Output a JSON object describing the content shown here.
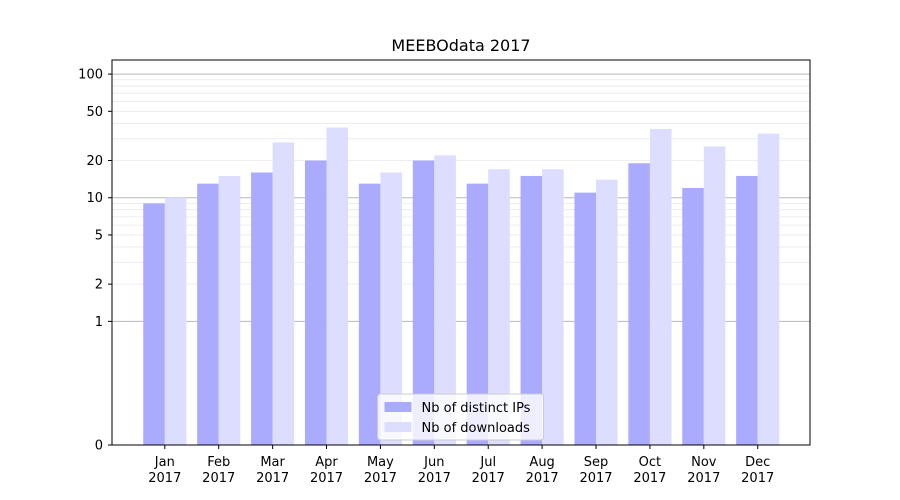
{
  "chart_data": {
    "type": "bar",
    "title": "MEEBOdata 2017",
    "categories": [
      [
        "Jan",
        "2017"
      ],
      [
        "Feb",
        "2017"
      ],
      [
        "Mar",
        "2017"
      ],
      [
        "Apr",
        "2017"
      ],
      [
        "May",
        "2017"
      ],
      [
        "Jun",
        "2017"
      ],
      [
        "Jul",
        "2017"
      ],
      [
        "Aug",
        "2017"
      ],
      [
        "Sep",
        "2017"
      ],
      [
        "Oct",
        "2017"
      ],
      [
        "Nov",
        "2017"
      ],
      [
        "Dec",
        "2017"
      ]
    ],
    "series": [
      {
        "name": "Nb of distinct IPs",
        "color": "#aaaaff",
        "values": [
          9,
          13,
          16,
          20,
          13,
          20,
          13,
          15,
          11,
          19,
          12,
          15
        ]
      },
      {
        "name": "Nb of downloads",
        "color": "#ddddff",
        "values": [
          10,
          15,
          28,
          37,
          16,
          22,
          17,
          17,
          14,
          36,
          26,
          33
        ]
      }
    ],
    "yscale": "symlog",
    "ylim": [
      0,
      130
    ],
    "yticks": [
      0,
      1,
      2,
      5,
      10,
      20,
      50,
      100
    ],
    "ytick_labels": [
      "0",
      "1",
      "2",
      "5",
      "10",
      "20",
      "50",
      "100"
    ],
    "grid": true,
    "legend_location": "lower center"
  }
}
